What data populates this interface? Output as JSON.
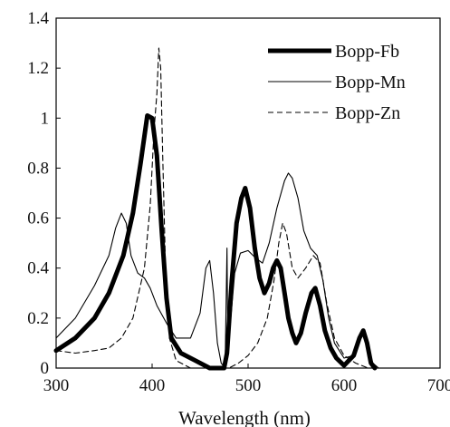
{
  "chart_data": {
    "type": "line",
    "xlabel": "Wavelength (nm)",
    "ylabel": "",
    "xlim": [
      300,
      700
    ],
    "ylim": [
      0,
      1.4
    ],
    "x_ticks": [
      "300",
      "400",
      "500",
      "600",
      "700"
    ],
    "y_ticks": [
      "0",
      "0.2",
      "0.4",
      "0.6",
      "0.8",
      "1",
      "1.2",
      "1.4"
    ],
    "grid": false,
    "legend_position": "top-right",
    "series": [
      {
        "name": "Bopp-Fb",
        "style": "thick",
        "points": [
          [
            300,
            0.07
          ],
          [
            320,
            0.12
          ],
          [
            340,
            0.2
          ],
          [
            355,
            0.3
          ],
          [
            370,
            0.45
          ],
          [
            380,
            0.62
          ],
          [
            388,
            0.82
          ],
          [
            395,
            1.01
          ],
          [
            400,
            1.0
          ],
          [
            405,
            0.85
          ],
          [
            410,
            0.55
          ],
          [
            415,
            0.28
          ],
          [
            420,
            0.12
          ],
          [
            430,
            0.06
          ],
          [
            445,
            0.03
          ],
          [
            460,
            0.0
          ],
          [
            475,
            0.0
          ],
          [
            478,
            0.06
          ],
          [
            483,
            0.35
          ],
          [
            488,
            0.58
          ],
          [
            493,
            0.68
          ],
          [
            497,
            0.72
          ],
          [
            502,
            0.64
          ],
          [
            507,
            0.48
          ],
          [
            512,
            0.36
          ],
          [
            517,
            0.3
          ],
          [
            522,
            0.34
          ],
          [
            526,
            0.4
          ],
          [
            530,
            0.43
          ],
          [
            534,
            0.4
          ],
          [
            538,
            0.3
          ],
          [
            542,
            0.2
          ],
          [
            546,
            0.14
          ],
          [
            550,
            0.1
          ],
          [
            555,
            0.14
          ],
          [
            560,
            0.22
          ],
          [
            566,
            0.3
          ],
          [
            570,
            0.32
          ],
          [
            575,
            0.25
          ],
          [
            580,
            0.15
          ],
          [
            586,
            0.08
          ],
          [
            592,
            0.04
          ],
          [
            600,
            0.01
          ],
          [
            610,
            0.05
          ],
          [
            616,
            0.12
          ],
          [
            620,
            0.15
          ],
          [
            624,
            0.1
          ],
          [
            628,
            0.02
          ],
          [
            632,
            0.0
          ]
        ]
      },
      {
        "name": "Bopp-Mn",
        "style": "thin",
        "points": [
          [
            300,
            0.12
          ],
          [
            320,
            0.2
          ],
          [
            340,
            0.33
          ],
          [
            355,
            0.45
          ],
          [
            362,
            0.56
          ],
          [
            368,
            0.62
          ],
          [
            373,
            0.58
          ],
          [
            378,
            0.45
          ],
          [
            385,
            0.38
          ],
          [
            392,
            0.36
          ],
          [
            398,
            0.32
          ],
          [
            405,
            0.25
          ],
          [
            415,
            0.18
          ],
          [
            425,
            0.12
          ],
          [
            440,
            0.12
          ],
          [
            450,
            0.22
          ],
          [
            456,
            0.4
          ],
          [
            460,
            0.43
          ],
          [
            464,
            0.3
          ],
          [
            468,
            0.1
          ],
          [
            472,
            0.02
          ],
          [
            476,
            0.0
          ],
          [
            478,
            0.48
          ],
          [
            479,
            0.05
          ],
          [
            482,
            0.2
          ],
          [
            486,
            0.38
          ],
          [
            492,
            0.46
          ],
          [
            500,
            0.47
          ],
          [
            508,
            0.44
          ],
          [
            515,
            0.42
          ],
          [
            522,
            0.5
          ],
          [
            530,
            0.64
          ],
          [
            538,
            0.75
          ],
          [
            542,
            0.78
          ],
          [
            546,
            0.76
          ],
          [
            552,
            0.68
          ],
          [
            558,
            0.55
          ],
          [
            565,
            0.48
          ],
          [
            572,
            0.45
          ],
          [
            578,
            0.35
          ],
          [
            584,
            0.2
          ],
          [
            590,
            0.1
          ],
          [
            600,
            0.04
          ],
          [
            610,
            0.05
          ],
          [
            616,
            0.12
          ],
          [
            620,
            0.15
          ],
          [
            624,
            0.1
          ],
          [
            630,
            0.02
          ],
          [
            636,
            0.0
          ]
        ]
      },
      {
        "name": "Bopp-Zn",
        "style": "dashed",
        "points": [
          [
            300,
            0.07
          ],
          [
            320,
            0.06
          ],
          [
            340,
            0.07
          ],
          [
            355,
            0.08
          ],
          [
            368,
            0.12
          ],
          [
            380,
            0.2
          ],
          [
            392,
            0.4
          ],
          [
            398,
            0.65
          ],
          [
            402,
            0.95
          ],
          [
            405,
            1.1
          ],
          [
            407,
            1.28
          ],
          [
            409,
            1.2
          ],
          [
            411,
            0.85
          ],
          [
            414,
            0.4
          ],
          [
            418,
            0.12
          ],
          [
            425,
            0.03
          ],
          [
            440,
            0.0
          ],
          [
            460,
            0.0
          ],
          [
            480,
            0.0
          ],
          [
            490,
            0.02
          ],
          [
            500,
            0.05
          ],
          [
            510,
            0.1
          ],
          [
            520,
            0.2
          ],
          [
            527,
            0.35
          ],
          [
            532,
            0.5
          ],
          [
            536,
            0.58
          ],
          [
            540,
            0.54
          ],
          [
            546,
            0.4
          ],
          [
            552,
            0.36
          ],
          [
            560,
            0.4
          ],
          [
            568,
            0.45
          ],
          [
            575,
            0.42
          ],
          [
            582,
            0.26
          ],
          [
            590,
            0.12
          ],
          [
            600,
            0.05
          ],
          [
            612,
            0.02
          ],
          [
            625,
            0.0
          ]
        ]
      }
    ]
  }
}
